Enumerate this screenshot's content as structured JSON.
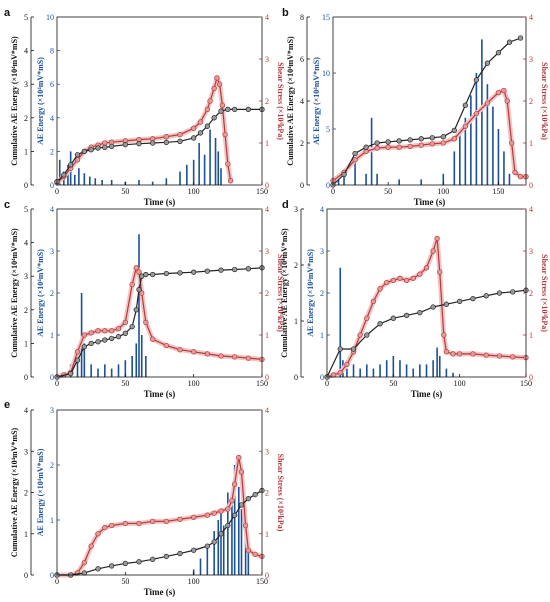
{
  "figure": {
    "colors": {
      "cum": "#222222",
      "ae": "#1a4f9c",
      "shear": "#b23a3a",
      "shear_glow": "#f3c4c4",
      "axis": "#111111"
    }
  },
  "chart_data": [
    {
      "panel": "a",
      "type": "line",
      "xlabel": "Time (s)",
      "xlim": [
        0,
        150
      ],
      "xticks": [
        0,
        50,
        100,
        150
      ],
      "cum_axis": {
        "label": "Cumulative AE Energy (×10⁴mV*mS)",
        "lim": [
          0,
          5
        ],
        "ticks": [
          0,
          1,
          2,
          3,
          4,
          5
        ]
      },
      "ae_axis": {
        "label": "AE Energy (×10⁴mV*mS)",
        "lim": [
          0,
          10
        ],
        "ticks": [
          0,
          2,
          4,
          6,
          8,
          10
        ]
      },
      "shear_axis": {
        "label": "Shear Stress (×10³kPa)",
        "lim": [
          0,
          4
        ],
        "ticks": [
          0,
          1,
          2,
          3,
          4
        ]
      },
      "series": [
        {
          "role": "cum",
          "x": [
            0,
            5,
            10,
            15,
            20,
            25,
            30,
            35,
            40,
            50,
            60,
            70,
            80,
            90,
            100,
            105,
            110,
            115,
            120,
            125,
            130,
            140,
            150
          ],
          "y": [
            0.1,
            0.3,
            0.6,
            0.9,
            1.0,
            1.05,
            1.1,
            1.12,
            1.15,
            1.2,
            1.23,
            1.25,
            1.27,
            1.3,
            1.4,
            1.55,
            1.75,
            2.0,
            2.2,
            2.25,
            2.25,
            2.25,
            2.25
          ]
        },
        {
          "role": "shear",
          "x": [
            0,
            5,
            10,
            15,
            20,
            25,
            30,
            35,
            40,
            50,
            60,
            70,
            80,
            90,
            100,
            105,
            110,
            112,
            115,
            117,
            119,
            121,
            123,
            125,
            127
          ],
          "y": [
            0.05,
            0.2,
            0.4,
            0.6,
            0.8,
            0.9,
            0.95,
            1.0,
            1.02,
            1.05,
            1.08,
            1.1,
            1.15,
            1.2,
            1.35,
            1.5,
            1.8,
            2.0,
            2.3,
            2.55,
            2.4,
            1.9,
            1.2,
            0.5,
            0.1
          ]
        },
        {
          "role": "ae",
          "x": [
            2,
            5,
            8,
            10,
            13,
            16,
            20,
            24,
            28,
            33,
            40,
            50,
            60,
            70,
            80,
            90,
            95,
            100,
            104,
            108,
            112,
            116,
            118,
            120
          ],
          "y": [
            1.5,
            0.8,
            1.2,
            2.0,
            0.6,
            1.0,
            0.7,
            0.5,
            0.4,
            0.3,
            0.3,
            0.2,
            0.3,
            0.2,
            0.4,
            0.8,
            1.2,
            1.5,
            2.5,
            1.8,
            3.3,
            2.8,
            2.0,
            1.0
          ]
        }
      ]
    },
    {
      "panel": "b",
      "type": "line",
      "xlabel": "Time (s)",
      "xlim": [
        0,
        175
      ],
      "xticks": [
        0,
        50,
        100,
        150
      ],
      "cum_axis": {
        "label": "Cumulative AE Energy (×10⁴mV*mS)",
        "lim": [
          0,
          8
        ],
        "ticks": [
          0,
          2,
          4,
          6,
          8
        ]
      },
      "ae_axis": {
        "label": "AE Energy (×10⁴mV*mS)",
        "lim": [
          0,
          15
        ],
        "ticks": [
          0,
          5,
          10,
          15
        ]
      },
      "shear_axis": {
        "label": "Shear Stress (×10³kPa)",
        "lim": [
          0,
          4
        ],
        "ticks": [
          0,
          1,
          2,
          3,
          4
        ]
      },
      "series": [
        {
          "role": "cum",
          "x": [
            0,
            10,
            20,
            30,
            40,
            50,
            60,
            70,
            80,
            90,
            100,
            110,
            120,
            130,
            140,
            150,
            160,
            170
          ],
          "y": [
            0,
            0.5,
            1.5,
            1.8,
            2.0,
            2.05,
            2.1,
            2.15,
            2.2,
            2.25,
            2.3,
            2.6,
            3.8,
            5.0,
            5.8,
            6.3,
            6.8,
            7.0
          ]
        },
        {
          "role": "shear",
          "x": [
            0,
            10,
            20,
            30,
            40,
            50,
            60,
            70,
            80,
            90,
            100,
            110,
            120,
            130,
            140,
            150,
            155,
            158,
            162,
            165,
            170,
            175
          ],
          "y": [
            0.1,
            0.3,
            0.6,
            0.8,
            0.88,
            0.9,
            0.9,
            0.92,
            0.95,
            0.98,
            1.0,
            1.1,
            1.4,
            1.7,
            1.95,
            2.2,
            2.25,
            2.0,
            1.0,
            0.3,
            0.2,
            0.2
          ]
        },
        {
          "role": "ae",
          "x": [
            5,
            10,
            20,
            30,
            35,
            40,
            60,
            80,
            100,
            110,
            115,
            120,
            125,
            130,
            135,
            140,
            145,
            150,
            155,
            160
          ],
          "y": [
            0.5,
            1.0,
            2.0,
            1.0,
            6.0,
            1.0,
            0.5,
            0.5,
            1.0,
            3.0,
            5.0,
            6.0,
            8.0,
            10.0,
            13.0,
            9.0,
            7.0,
            5.0,
            3.0,
            1.0
          ]
        }
      ]
    },
    {
      "panel": "c",
      "type": "line",
      "xlabel": "Time (s)",
      "xlim": [
        0,
        150
      ],
      "xticks": [
        0,
        50,
        100,
        150
      ],
      "cum_axis": {
        "label": "Cumulative AE Energy (×10⁴mV*mS)",
        "lim": [
          0,
          5
        ],
        "ticks": [
          0,
          1,
          2,
          3,
          4,
          5
        ]
      },
      "ae_axis": {
        "label": "AE Energy (×10⁴mV*mS)",
        "lim": [
          0,
          4
        ],
        "ticks": [
          0,
          1,
          2,
          3,
          4
        ]
      },
      "shear_axis": {
        "label": "Shear Stress (×10³kPa)",
        "lim": [
          0,
          4
        ],
        "ticks": [
          0,
          1,
          2,
          3,
          4
        ]
      },
      "series": [
        {
          "role": "cum",
          "x": [
            0,
            10,
            15,
            20,
            25,
            30,
            35,
            40,
            45,
            50,
            55,
            58,
            60,
            62,
            65,
            70,
            80,
            90,
            100,
            110,
            120,
            130,
            140,
            150
          ],
          "y": [
            0,
            0.1,
            0.5,
            0.9,
            1.0,
            1.05,
            1.1,
            1.15,
            1.2,
            1.3,
            1.5,
            2.0,
            2.6,
            3.0,
            3.05,
            3.05,
            3.08,
            3.1,
            3.12,
            3.15,
            3.18,
            3.2,
            3.22,
            3.25
          ]
        },
        {
          "role": "shear",
          "x": [
            0,
            5,
            10,
            15,
            20,
            25,
            30,
            35,
            40,
            45,
            50,
            55,
            58,
            60,
            62,
            65,
            70,
            80,
            90,
            100,
            110,
            120,
            130,
            140,
            150
          ],
          "y": [
            0,
            0.05,
            0.1,
            0.6,
            1.0,
            1.05,
            1.1,
            1.1,
            1.1,
            1.15,
            1.3,
            2.2,
            2.6,
            2.5,
            2.0,
            1.3,
            0.9,
            0.75,
            0.65,
            0.6,
            0.55,
            0.5,
            0.48,
            0.45,
            0.42
          ]
        },
        {
          "role": "ae",
          "x": [
            10,
            15,
            18,
            20,
            25,
            30,
            35,
            40,
            45,
            50,
            55,
            58,
            60,
            62,
            65
          ],
          "y": [
            0.3,
            0.5,
            2.0,
            0.8,
            0.3,
            0.2,
            0.3,
            0.2,
            0.3,
            0.4,
            0.5,
            0.8,
            3.4,
            1.0,
            0.5
          ]
        }
      ]
    },
    {
      "panel": "d",
      "type": "line",
      "xlabel": "Time (s)",
      "xlim": [
        0,
        150
      ],
      "xticks": [
        0,
        50,
        100,
        150
      ],
      "cum_axis": {
        "label": "Cumulative AE Energy (×10⁴mV*mS)",
        "lim": [
          0,
          3
        ],
        "ticks": [
          0,
          1,
          2,
          3
        ]
      },
      "ae_axis": {
        "label": "AE Energy (×10⁴mV*mS)",
        "lim": [
          0,
          4
        ],
        "ticks": [
          0,
          1,
          2,
          3,
          4
        ]
      },
      "shear_axis": {
        "label": "Shear Stress (×10³kPa)",
        "lim": [
          0,
          4
        ],
        "ticks": [
          0,
          1,
          2,
          3,
          4
        ]
      },
      "series": [
        {
          "role": "cum",
          "x": [
            0,
            10,
            20,
            30,
            40,
            50,
            60,
            70,
            80,
            90,
            100,
            110,
            120,
            130,
            140,
            150
          ],
          "y": [
            0,
            0.5,
            0.5,
            0.75,
            0.95,
            1.05,
            1.1,
            1.15,
            1.25,
            1.3,
            1.35,
            1.4,
            1.45,
            1.5,
            1.52,
            1.55
          ]
        },
        {
          "role": "shear",
          "x": [
            0,
            5,
            10,
            15,
            20,
            25,
            30,
            35,
            40,
            45,
            50,
            55,
            60,
            65,
            70,
            75,
            80,
            83,
            85,
            88,
            90,
            95,
            100,
            110,
            120,
            130,
            140,
            150
          ],
          "y": [
            0,
            0.05,
            0.1,
            0.3,
            0.6,
            1.0,
            1.4,
            1.8,
            2.1,
            2.25,
            2.3,
            2.35,
            2.3,
            2.35,
            2.45,
            2.6,
            3.0,
            3.3,
            2.5,
            1.0,
            0.6,
            0.55,
            0.55,
            0.55,
            0.52,
            0.5,
            0.48,
            0.46
          ]
        },
        {
          "role": "ae",
          "x": [
            10,
            12,
            15,
            20,
            25,
            30,
            35,
            40,
            45,
            50,
            55,
            60,
            65,
            70,
            75,
            80,
            83,
            85,
            90,
            95
          ],
          "y": [
            2.6,
            0.4,
            0.2,
            0.3,
            0.2,
            0.3,
            0.2,
            0.3,
            0.4,
            0.5,
            0.4,
            0.3,
            0.2,
            0.3,
            0.3,
            0.4,
            0.7,
            0.5,
            0.2,
            0.1
          ]
        }
      ]
    },
    {
      "panel": "e",
      "type": "line",
      "xlabel": "Time (s)",
      "xlim": [
        0,
        150
      ],
      "xticks": [
        0,
        50,
        100,
        150
      ],
      "cum_axis": {
        "label": "Cumulative AE Energy (×10⁴mV*mS)",
        "lim": [
          0,
          4
        ],
        "ticks": [
          0,
          1,
          2,
          3,
          4
        ]
      },
      "ae_axis": {
        "label": "AE Energy (×10⁴mV*mS)",
        "lim": [
          0,
          3
        ],
        "ticks": [
          0,
          1,
          2,
          3
        ]
      },
      "shear_axis": {
        "label": "Shear Stress (×10³kPa)",
        "lim": [
          0,
          4
        ],
        "ticks": [
          0,
          1,
          2,
          3,
          4
        ]
      },
      "series": [
        {
          "role": "cum",
          "x": [
            0,
            10,
            20,
            30,
            40,
            50,
            60,
            70,
            80,
            90,
            100,
            110,
            115,
            120,
            125,
            130,
            135,
            140,
            145,
            150
          ],
          "y": [
            0,
            0,
            0.05,
            0.15,
            0.22,
            0.28,
            0.32,
            0.38,
            0.45,
            0.52,
            0.6,
            0.7,
            0.8,
            1.0,
            1.2,
            1.45,
            1.7,
            1.85,
            1.95,
            2.05
          ]
        },
        {
          "role": "shear",
          "x": [
            0,
            10,
            15,
            20,
            25,
            30,
            35,
            40,
            50,
            60,
            70,
            80,
            90,
            100,
            110,
            115,
            120,
            125,
            128,
            130,
            133,
            135,
            138,
            140,
            145,
            150
          ],
          "y": [
            0,
            0,
            0.05,
            0.3,
            0.7,
            1.0,
            1.15,
            1.2,
            1.25,
            1.25,
            1.3,
            1.3,
            1.35,
            1.4,
            1.45,
            1.5,
            1.55,
            1.6,
            1.8,
            2.2,
            2.85,
            2.5,
            1.2,
            0.6,
            0.5,
            0.45
          ]
        },
        {
          "role": "ae",
          "x": [
            100,
            105,
            110,
            115,
            118,
            120,
            122,
            125,
            128,
            130,
            133,
            135,
            138,
            140
          ],
          "y": [
            0.1,
            0.3,
            0.5,
            0.8,
            1.0,
            1.2,
            0.9,
            1.5,
            1.3,
            2.0,
            1.6,
            1.2,
            0.8,
            0.4
          ]
        }
      ]
    }
  ]
}
